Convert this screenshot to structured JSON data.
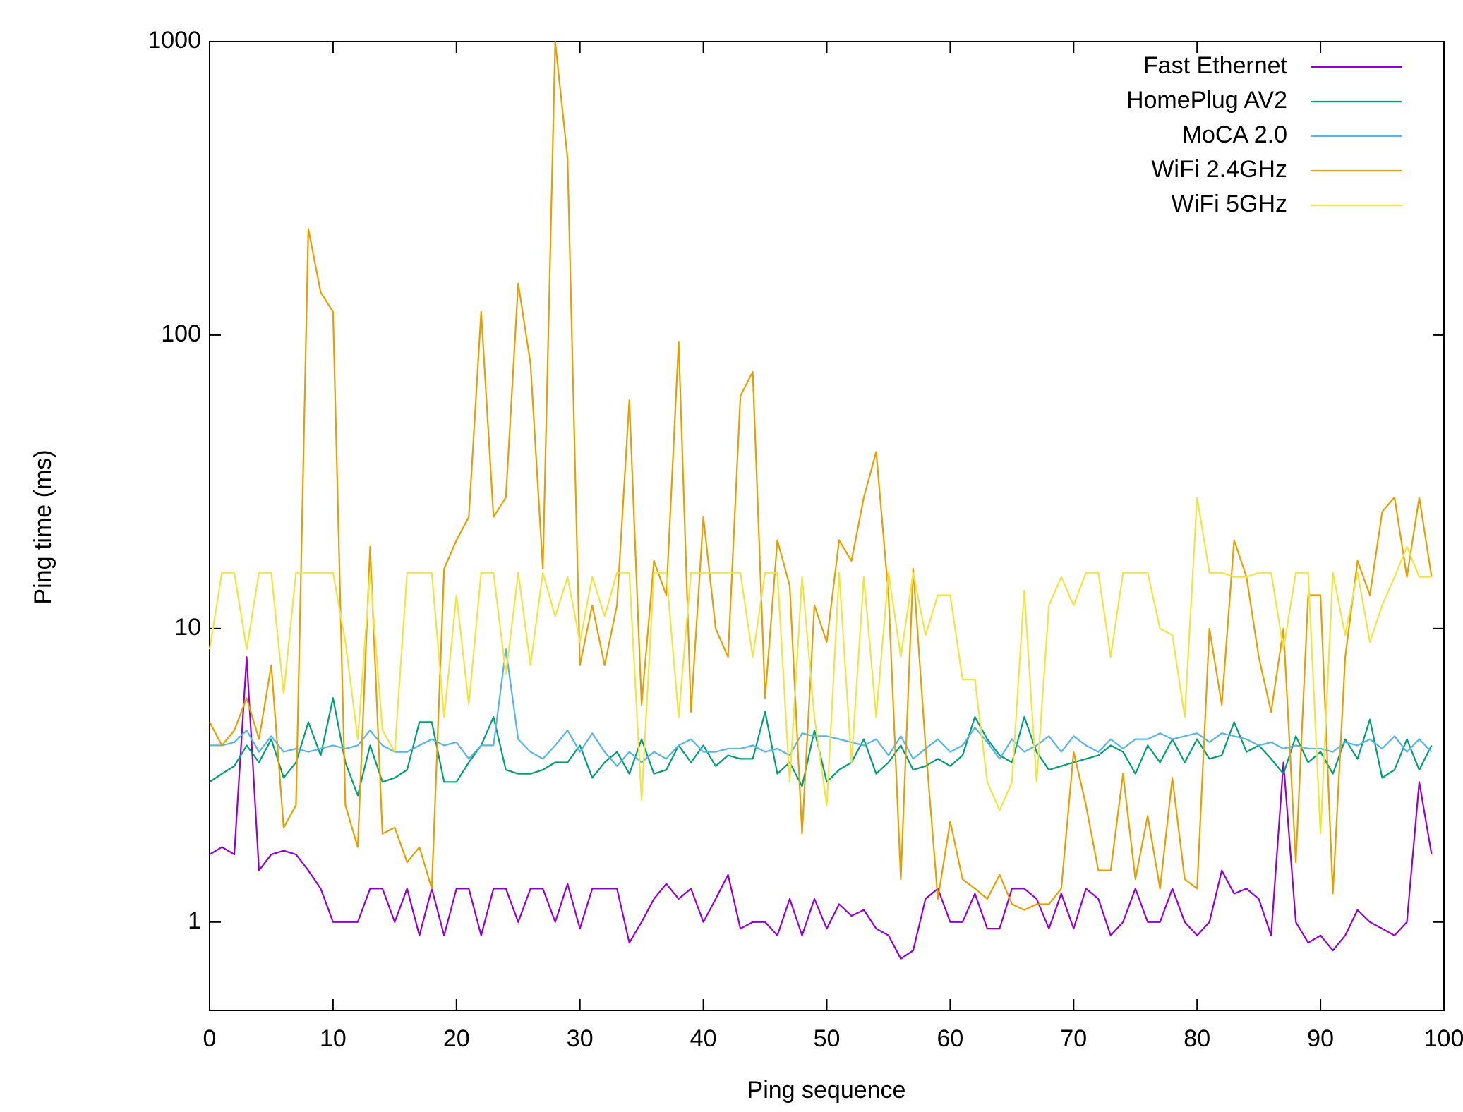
{
  "chart_data": {
    "type": "line",
    "xlabel": "Ping sequence",
    "ylabel": "Ping time (ms)",
    "x": [
      0,
      1,
      2,
      3,
      4,
      5,
      6,
      7,
      8,
      9,
      10,
      11,
      12,
      13,
      14,
      15,
      16,
      17,
      18,
      19,
      20,
      21,
      22,
      23,
      24,
      25,
      26,
      27,
      28,
      29,
      30,
      31,
      32,
      33,
      34,
      35,
      36,
      37,
      38,
      39,
      40,
      41,
      42,
      43,
      44,
      45,
      46,
      47,
      48,
      49,
      50,
      51,
      52,
      53,
      54,
      55,
      56,
      57,
      58,
      59,
      60,
      61,
      62,
      63,
      64,
      65,
      66,
      67,
      68,
      69,
      70,
      71,
      72,
      73,
      74,
      75,
      76,
      77,
      78,
      79,
      80,
      81,
      82,
      83,
      84,
      85,
      86,
      87,
      88,
      89,
      90,
      91,
      92,
      93,
      94,
      95,
      96,
      97,
      98,
      99
    ],
    "series": [
      {
        "name": "Fast Ethernet",
        "color": "#9400d3",
        "values": [
          1.7,
          1.8,
          1.7,
          8.0,
          1.5,
          1.7,
          1.75,
          1.7,
          1.5,
          1.3,
          1.0,
          1.0,
          1.0,
          1.3,
          1.3,
          1.0,
          1.3,
          0.9,
          1.3,
          0.9,
          1.3,
          1.3,
          0.9,
          1.3,
          1.3,
          1.0,
          1.3,
          1.3,
          1.0,
          1.35,
          0.95,
          1.3,
          1.3,
          1.3,
          0.85,
          1.0,
          1.2,
          1.35,
          1.2,
          1.3,
          1.0,
          1.2,
          1.45,
          0.95,
          1.0,
          1.0,
          0.9,
          1.2,
          0.9,
          1.2,
          0.95,
          1.15,
          1.05,
          1.1,
          0.95,
          0.9,
          0.75,
          0.8,
          1.2,
          1.3,
          1.0,
          1.0,
          1.25,
          0.95,
          0.95,
          1.3,
          1.3,
          1.2,
          0.95,
          1.25,
          0.95,
          1.3,
          1.2,
          0.9,
          1.0,
          1.3,
          1.0,
          1.0,
          1.3,
          1.0,
          0.9,
          1.0,
          1.5,
          1.25,
          1.3,
          1.2,
          0.9,
          3.5,
          1.0,
          0.85,
          0.9,
          0.8,
          0.9,
          1.1,
          1.0,
          0.95,
          0.9,
          1.0,
          3.0,
          1.7
        ]
      },
      {
        "name": "HomePlug AV2",
        "color": "#009e73",
        "values": [
          3.0,
          3.2,
          3.4,
          4.0,
          3.5,
          4.2,
          3.1,
          3.5,
          4.8,
          3.7,
          5.8,
          3.5,
          2.7,
          4.0,
          3.0,
          3.1,
          3.3,
          4.8,
          4.8,
          3.0,
          3.0,
          3.5,
          4.0,
          5.0,
          3.3,
          3.2,
          3.2,
          3.3,
          3.5,
          3.5,
          4.0,
          3.1,
          3.5,
          3.8,
          3.2,
          4.2,
          3.2,
          3.3,
          4.0,
          3.5,
          4.0,
          3.4,
          3.7,
          3.6,
          3.6,
          5.2,
          3.2,
          3.5,
          2.9,
          4.5,
          3.0,
          3.3,
          3.5,
          4.2,
          3.2,
          3.5,
          4.0,
          3.3,
          3.4,
          3.6,
          3.4,
          3.7,
          5.0,
          4.2,
          3.7,
          3.5,
          5.0,
          3.8,
          3.3,
          3.4,
          3.5,
          3.6,
          3.7,
          4.0,
          3.8,
          3.2,
          4.0,
          3.5,
          4.2,
          3.5,
          4.2,
          3.6,
          3.7,
          4.8,
          3.8,
          4.0,
          3.6,
          3.2,
          4.3,
          3.5,
          3.8,
          3.2,
          4.2,
          3.6,
          4.9,
          3.1,
          3.3,
          4.2,
          3.3,
          4.0
        ]
      },
      {
        "name": "MoCA 2.0",
        "color": "#56b4e9",
        "values": [
          4.0,
          4.0,
          4.1,
          4.5,
          3.8,
          4.3,
          3.8,
          3.9,
          3.8,
          3.9,
          4.0,
          3.9,
          4.0,
          4.5,
          4.0,
          3.8,
          3.8,
          4.0,
          4.2,
          4.0,
          4.1,
          3.6,
          4.0,
          4.0,
          8.5,
          4.2,
          3.8,
          3.6,
          4.0,
          4.5,
          3.8,
          4.4,
          3.8,
          3.4,
          3.8,
          3.5,
          3.8,
          3.6,
          4.0,
          4.2,
          3.8,
          3.8,
          3.9,
          3.9,
          4.0,
          3.8,
          3.9,
          3.7,
          4.4,
          4.3,
          4.3,
          4.2,
          4.1,
          4.0,
          4.2,
          3.7,
          4.3,
          3.6,
          3.9,
          4.2,
          3.8,
          4.0,
          4.6,
          4.1,
          3.6,
          4.2,
          3.8,
          4.0,
          4.3,
          3.8,
          4.3,
          4.0,
          3.8,
          4.2,
          3.9,
          4.2,
          4.2,
          4.4,
          4.2,
          4.3,
          4.4,
          4.1,
          4.4,
          4.3,
          4.2,
          4.0,
          4.1,
          3.9,
          4.0,
          3.9,
          3.9,
          3.8,
          4.1,
          4.0,
          4.2,
          3.9,
          4.3,
          3.8,
          4.2,
          3.8
        ]
      },
      {
        "name": "WiFi 2.4GHz",
        "color": "#e69f00",
        "values": [
          4.8,
          4.0,
          4.5,
          5.8,
          4.2,
          7.5,
          2.1,
          2.5,
          230,
          140,
          120,
          2.5,
          1.8,
          19,
          2.0,
          2.1,
          1.6,
          1.8,
          1.3,
          16,
          20,
          24,
          120,
          24,
          28,
          150,
          80,
          16,
          1000,
          400,
          7.5,
          12,
          7.5,
          12,
          60,
          5.5,
          17,
          13,
          95,
          5.2,
          24,
          10,
          8,
          62,
          75,
          5.8,
          20,
          14,
          2.0,
          12,
          9,
          20,
          17,
          28,
          40,
          13,
          1.4,
          16,
          4,
          1.2,
          2.2,
          1.4,
          1.3,
          1.2,
          1.45,
          1.15,
          1.1,
          1.15,
          1.15,
          1.3,
          3.8,
          2.5,
          1.5,
          1.5,
          3.2,
          1.4,
          2.3,
          1.3,
          3.1,
          1.4,
          1.3,
          10,
          5.5,
          20,
          15,
          8,
          5.2,
          10,
          1.6,
          13,
          13,
          1.25,
          8,
          17,
          13,
          25,
          28,
          15,
          28,
          15
        ]
      },
      {
        "name": "WiFi 5GHz",
        "color": "#f0e442",
        "values": [
          8.5,
          15.5,
          15.5,
          8.5,
          15.5,
          15.5,
          6,
          15.5,
          15.5,
          15.5,
          15.5,
          9,
          4.2,
          15.5,
          4.5,
          3.8,
          15.5,
          15.5,
          15.5,
          5,
          13,
          5.5,
          15.5,
          15.5,
          7,
          15.5,
          7.5,
          15.5,
          11,
          15,
          9,
          15,
          11,
          15.5,
          15.5,
          2.6,
          15.5,
          15.5,
          5,
          15.5,
          15.5,
          15.5,
          15.5,
          15.5,
          8,
          15.5,
          15.5,
          3,
          15,
          5,
          2.5,
          15.5,
          3.5,
          15,
          5,
          15.5,
          8,
          15.5,
          9.5,
          13,
          13,
          6.7,
          6.7,
          3,
          2.4,
          3,
          13.5,
          3,
          12,
          15,
          12,
          15.5,
          15.5,
          8,
          15.5,
          15.5,
          15.5,
          10,
          9.5,
          5,
          28,
          15.5,
          15.5,
          15,
          15,
          15.5,
          15.5,
          8.5,
          15.5,
          15.5,
          2.0,
          15.5,
          9.5,
          15.5,
          9,
          12,
          15,
          19,
          15,
          15
        ]
      }
    ],
    "xlim": [
      0,
      100
    ],
    "xticks": [
      0,
      10,
      20,
      30,
      40,
      50,
      60,
      70,
      80,
      90,
      100
    ],
    "ylim": [
      0.5,
      1000
    ],
    "yticks": [
      1,
      10,
      100,
      1000
    ],
    "ylog": true,
    "grid": false,
    "legend": "upper right"
  }
}
